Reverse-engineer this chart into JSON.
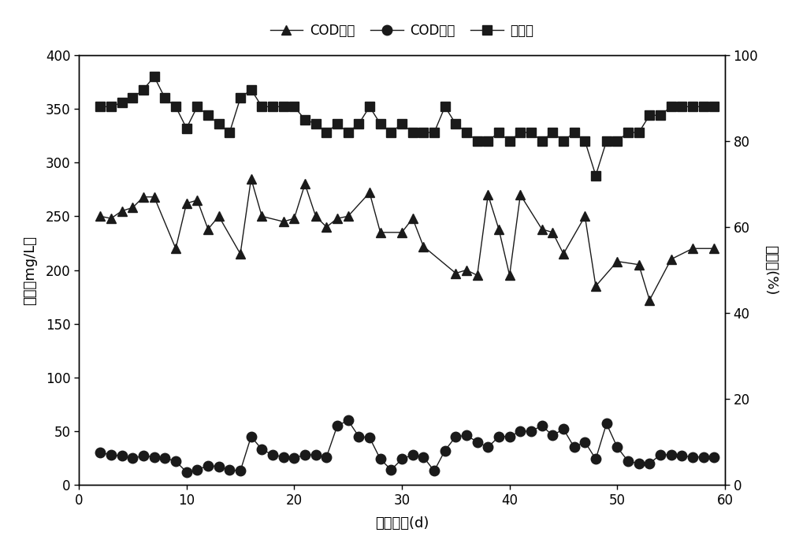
{
  "cod_in_days": [
    2,
    3,
    4,
    5,
    6,
    7,
    9,
    10,
    11,
    12,
    13,
    15,
    16,
    17,
    19,
    20,
    21,
    22,
    23,
    24,
    25,
    27,
    28,
    30,
    31,
    32,
    35,
    36,
    37,
    38,
    39,
    40,
    41,
    43,
    44,
    45,
    47,
    48,
    50,
    52,
    53,
    55,
    57,
    59
  ],
  "cod_in_vals": [
    250,
    248,
    255,
    258,
    268,
    268,
    220,
    262,
    265,
    238,
    250,
    215,
    285,
    250,
    245,
    248,
    280,
    250,
    240,
    248,
    250,
    272,
    235,
    235,
    248,
    222,
    197,
    200,
    195,
    270,
    238,
    195,
    270,
    238,
    235,
    215,
    250,
    185,
    208,
    205,
    172,
    210,
    220,
    220
  ],
  "cod_out_days": [
    2,
    3,
    4,
    5,
    6,
    7,
    8,
    9,
    10,
    11,
    12,
    13,
    14,
    15,
    16,
    17,
    18,
    19,
    20,
    21,
    22,
    23,
    24,
    25,
    26,
    27,
    28,
    29,
    30,
    31,
    32,
    33,
    34,
    35,
    36,
    37,
    38,
    39,
    40,
    41,
    42,
    43,
    44,
    45,
    46,
    47,
    48,
    49,
    50,
    51,
    52,
    53,
    54,
    55,
    56,
    57,
    58,
    59
  ],
  "cod_out_vals": [
    30,
    28,
    27,
    25,
    27,
    26,
    25,
    22,
    12,
    14,
    18,
    17,
    14,
    13,
    45,
    33,
    28,
    26,
    25,
    28,
    28,
    26,
    55,
    60,
    45,
    44,
    24,
    14,
    24,
    28,
    26,
    13,
    32,
    45,
    46,
    40,
    35,
    45,
    45,
    50,
    50,
    55,
    46,
    52,
    35,
    40,
    24,
    57,
    35,
    22,
    20,
    20,
    28,
    28,
    27,
    26,
    26,
    26
  ],
  "removal_days": [
    2,
    3,
    4,
    5,
    6,
    7,
    8,
    9,
    10,
    11,
    12,
    13,
    14,
    15,
    16,
    17,
    18,
    19,
    20,
    21,
    22,
    23,
    24,
    25,
    26,
    27,
    28,
    29,
    30,
    31,
    32,
    33,
    34,
    35,
    36,
    37,
    38,
    39,
    40,
    41,
    42,
    43,
    44,
    45,
    46,
    47,
    48,
    49,
    50,
    51,
    52,
    53,
    54,
    55,
    56,
    57,
    58,
    59
  ],
  "removal_vals": [
    88,
    88,
    89,
    90,
    92,
    95,
    90,
    88,
    83,
    88,
    86,
    84,
    82,
    90,
    92,
    88,
    88,
    88,
    88,
    85,
    84,
    82,
    84,
    82,
    84,
    88,
    84,
    82,
    84,
    82,
    82,
    82,
    88,
    84,
    82,
    80,
    80,
    82,
    80,
    82,
    82,
    80,
    82,
    80,
    82,
    80,
    72,
    80,
    80,
    82,
    82,
    86,
    86,
    88,
    88,
    88,
    88,
    88
  ],
  "xlabel": "运行天数(d)",
  "ylabel_left": "浓度（mg/L）",
  "ylabel_right": "去除率(%)",
  "legend_cod_in": "COD进水",
  "legend_cod_out": "COD出水",
  "legend_removal": "去除率",
  "ylim_left": [
    0,
    400
  ],
  "ylim_right": [
    0,
    100
  ],
  "xlim": [
    0,
    60
  ],
  "yticks_left": [
    0,
    50,
    100,
    150,
    200,
    250,
    300,
    350,
    400
  ],
  "yticks_right": [
    0,
    20,
    40,
    60,
    80,
    100
  ],
  "xticks": [
    0,
    10,
    20,
    30,
    40,
    50,
    60
  ],
  "line_color": "#1a1a1a",
  "marker_color": "#1a1a1a",
  "bg_color": "#ffffff"
}
